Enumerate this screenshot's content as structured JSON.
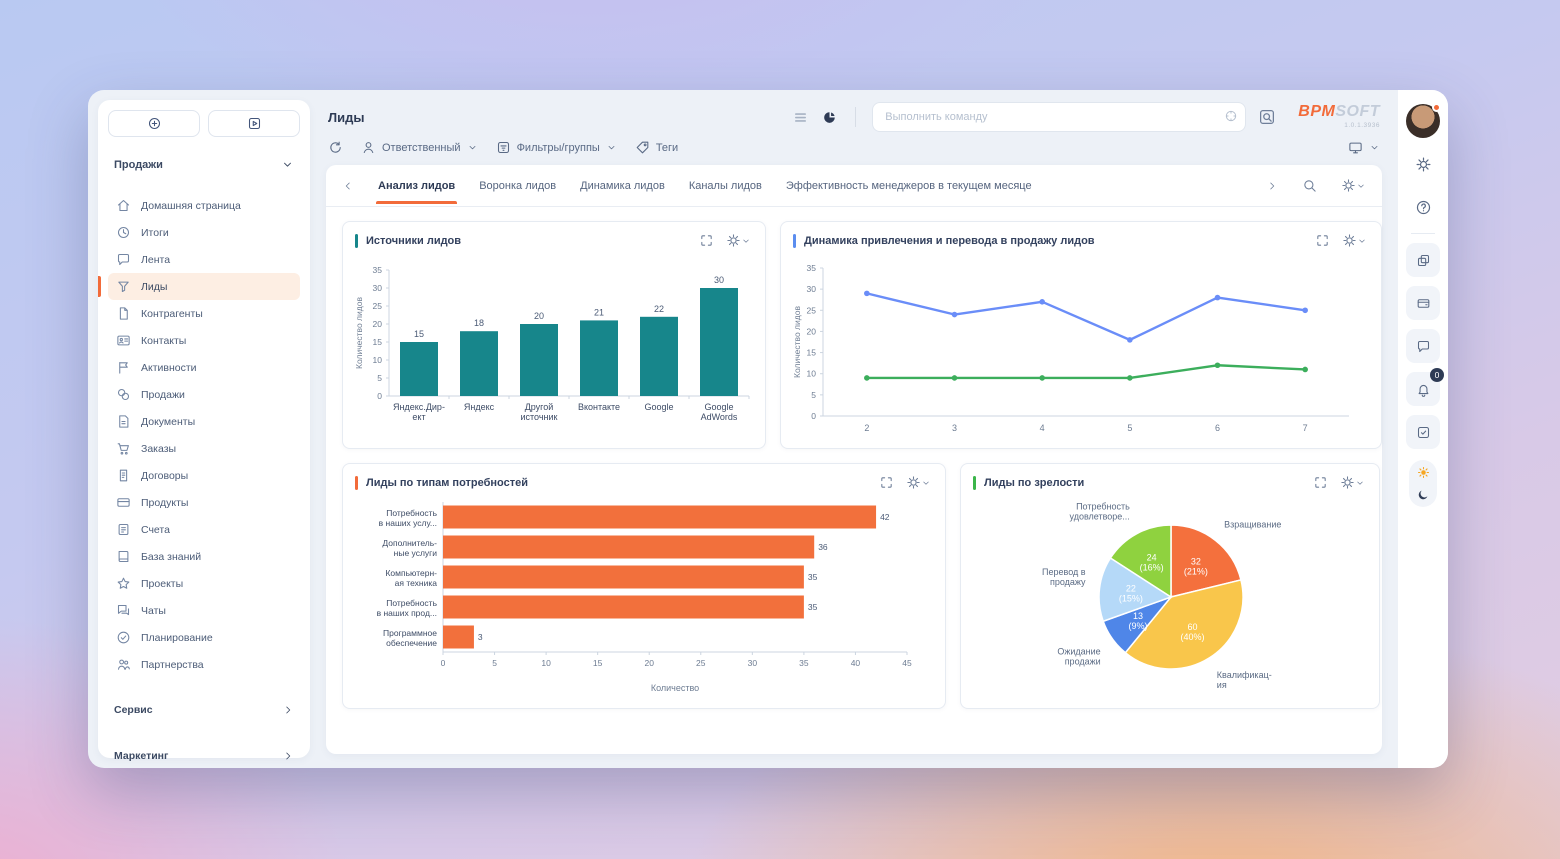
{
  "header": {
    "title": "Лиды",
    "command_placeholder": "Выполнить команду",
    "logo": {
      "bpm": "BPM",
      "soft": "SOFT",
      "version": "1.0.1.3936"
    }
  },
  "toolbar": {
    "responsible_label": "Ответственный",
    "filters_label": "Фильтры/группы",
    "tags_label": "Теги"
  },
  "tabs": [
    "Анализ лидов",
    "Воронка лидов",
    "Динамика лидов",
    "Каналы лидов",
    "Эффективность менеджеров в текущем месяце"
  ],
  "sidebar": {
    "workplace": "Продажи",
    "items": [
      {
        "label": "Домашняя страница",
        "icon": "home-icon"
      },
      {
        "label": "Итоги",
        "icon": "summary-icon"
      },
      {
        "label": "Лента",
        "icon": "feed-icon"
      },
      {
        "label": "Лиды",
        "icon": "leads-icon",
        "active": true
      },
      {
        "label": "Контрагенты",
        "icon": "accounts-icon"
      },
      {
        "label": "Контакты",
        "icon": "contacts-icon"
      },
      {
        "label": "Активности",
        "icon": "activities-icon"
      },
      {
        "label": "Продажи",
        "icon": "sales-icon"
      },
      {
        "label": "Документы",
        "icon": "documents-icon"
      },
      {
        "label": "Заказы",
        "icon": "orders-icon"
      },
      {
        "label": "Договоры",
        "icon": "contracts-icon"
      },
      {
        "label": "Продукты",
        "icon": "products-icon"
      },
      {
        "label": "Счета",
        "icon": "invoices-icon"
      },
      {
        "label": "База знаний",
        "icon": "knowledge-base-icon"
      },
      {
        "label": "Проекты",
        "icon": "projects-icon"
      },
      {
        "label": "Чаты",
        "icon": "chats-icon"
      },
      {
        "label": "Планирование",
        "icon": "planning-icon"
      },
      {
        "label": "Партнерства",
        "icon": "partnership-icon"
      }
    ],
    "footer": [
      {
        "label": "Сервис"
      },
      {
        "label": "Маркетинг"
      }
    ],
    "collapse_glyph": "«"
  },
  "right_rail": {
    "bell_badge": "0"
  },
  "colors": {
    "accent_orange": "#f26b3a",
    "teal": "#17868b",
    "line_blue": "#6a8df8",
    "line_green": "#3cae5c"
  },
  "chart_data": [
    {
      "id": "sources",
      "type": "bar",
      "title": "Источники лидов",
      "accent": "#17868b",
      "bar_color": "#17868b",
      "ylabel": "Количество лидов",
      "ylim": [
        0,
        35
      ],
      "ystep": 5,
      "categories": [
        [
          "Яндекс.Дир-",
          "ект"
        ],
        [
          "Яндекс"
        ],
        [
          "Другой",
          "источник"
        ],
        [
          "Вконтакте"
        ],
        [
          "Google"
        ],
        [
          "Google",
          "AdWords"
        ]
      ],
      "values": [
        15,
        18,
        20,
        21,
        22,
        30
      ]
    },
    {
      "id": "dynamics",
      "type": "line",
      "title": "Динамика привлечения и перевода в продажу лидов",
      "accent": "#5b8def",
      "ylabel": "Количество лидов",
      "ylim": [
        0,
        35
      ],
      "ystep": 5,
      "x": [
        2,
        3,
        4,
        5,
        6,
        7
      ],
      "series": [
        {
          "color": "#6a8df8",
          "values": [
            29,
            24,
            27,
            18,
            28,
            25
          ]
        },
        {
          "color": "#3cae5c",
          "values": [
            9,
            9,
            9,
            9,
            12,
            11
          ]
        }
      ]
    },
    {
      "id": "needs",
      "type": "hbar",
      "title": "Лиды по типам потребностей",
      "accent": "#f26b3a",
      "bar_color": "#f2703c",
      "xlabel": "Количество",
      "xlim": [
        0,
        45
      ],
      "xstep": 5,
      "categories": [
        [
          "Потребность",
          "в наших услу..."
        ],
        [
          "Дополнитель-",
          "ные услуги"
        ],
        [
          "Компьютерн-",
          "ая техника"
        ],
        [
          "Потребность",
          "в наших прод..."
        ],
        [
          "Программное",
          "обеспечение"
        ]
      ],
      "values": [
        42,
        36,
        35,
        35,
        3
      ]
    },
    {
      "id": "maturity",
      "type": "pie",
      "title": "Лиды по зрелости",
      "accent": "#3bb54a",
      "slices": [
        {
          "label": [
            "Взращивание"
          ],
          "value": 32,
          "pct": "21%",
          "color": "#f4703d"
        },
        {
          "label": [
            "Квалификац-",
            "ия"
          ],
          "value": 60,
          "pct": "40%",
          "color": "#f9c64b"
        },
        {
          "label": [
            "Ожидание",
            "продажи"
          ],
          "value": 13,
          "pct": "9%",
          "color": "#4f86e8"
        },
        {
          "label": [
            "Перевод в",
            "продажу"
          ],
          "value": 22,
          "pct": "15%",
          "color": "#b5d9f8"
        },
        {
          "label": [
            "Потребность",
            "удовлетворе..."
          ],
          "value": 24,
          "pct": "16%",
          "color": "#8fd23f"
        }
      ]
    }
  ]
}
